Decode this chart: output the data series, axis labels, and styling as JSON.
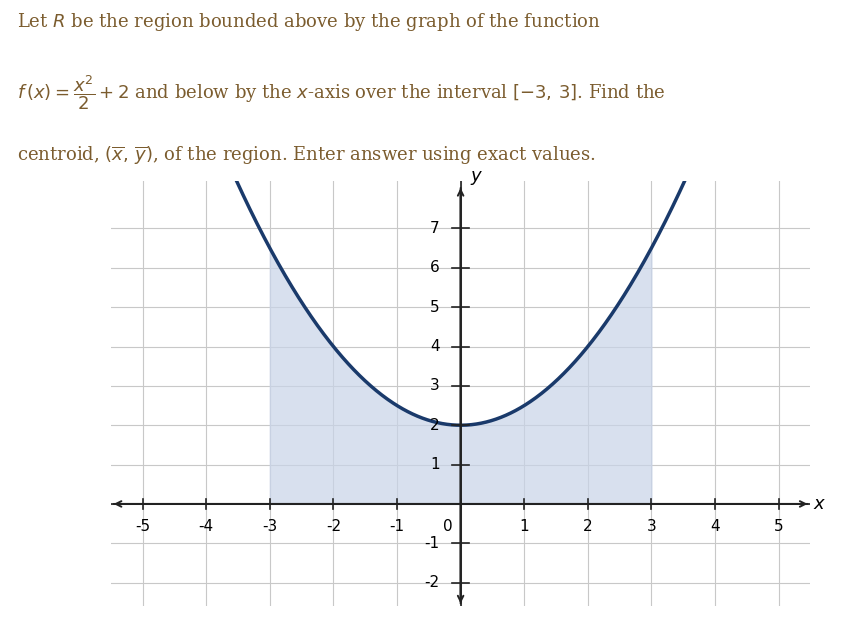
{
  "xlim": [
    -5.5,
    5.5
  ],
  "ylim": [
    -2.6,
    8.2
  ],
  "xticks": [
    -5,
    -4,
    -3,
    -2,
    -1,
    0,
    1,
    2,
    3,
    4,
    5
  ],
  "yticks": [
    -2,
    -1,
    1,
    2,
    3,
    4,
    5,
    6,
    7
  ],
  "xlabel": "x",
  "ylabel": "y",
  "curve_color": "#1a3a6b",
  "curve_linewidth": 2.5,
  "fill_color": "#c8d4e8",
  "fill_alpha": 0.7,
  "interval_start": -3,
  "interval_end": 3,
  "grid_color": "#c8c8c8",
  "grid_linewidth": 0.8,
  "axis_color": "#222222",
  "tick_label_fontsize": 11,
  "axis_label_fontsize": 13,
  "text_color": "#7b5c2e",
  "background_color": "#ffffff",
  "fig_width": 8.53,
  "fig_height": 6.25,
  "line1": "Let $R$ be the region bounded above by the graph of the function",
  "line2a": "$f\\,(x) = \\dfrac{x^2}{2} + 2$ and below by the $x$-axis over the interval $[-3,\\,3]$. Find the",
  "line3": "centroid, $(\\overline{x},\\,\\overline{y})$, of the region. Enter answer using exact values."
}
